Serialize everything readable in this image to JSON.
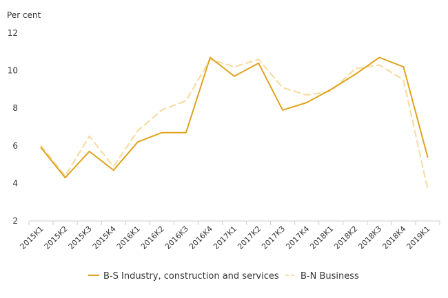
{
  "chart_data": {
    "type": "line",
    "ylabel": "Per cent",
    "ylim": [
      2,
      12
    ],
    "yticks": [
      2,
      4,
      6,
      8,
      10,
      12
    ],
    "grid": false,
    "legend_position": "bottom",
    "categories": [
      "2015K1",
      "2015K2",
      "2015K3",
      "2015K4",
      "2016K1",
      "2016K2",
      "2016K3",
      "2016K4",
      "2017K1",
      "2017K2",
      "2017K3",
      "2017K4",
      "2018K1",
      "2018K2",
      "2018K3",
      "2018K4",
      "2019K1"
    ],
    "series": [
      {
        "name": "B-S Industry, construction and services",
        "color": "#E0A21B",
        "style": "solid",
        "values": [
          5.9,
          4.3,
          5.7,
          4.7,
          6.2,
          6.7,
          6.7,
          10.7,
          9.7,
          10.4,
          7.9,
          8.3,
          9.0,
          9.8,
          10.7,
          10.2,
          5.4
        ]
      },
      {
        "name": "B-N Business",
        "color": "#F7DCA3",
        "style": "dashed",
        "values": [
          6.0,
          4.4,
          6.5,
          4.9,
          6.8,
          7.9,
          8.4,
          10.6,
          10.2,
          10.6,
          9.1,
          8.7,
          8.9,
          10.1,
          10.3,
          9.5,
          3.7
        ]
      }
    ]
  }
}
